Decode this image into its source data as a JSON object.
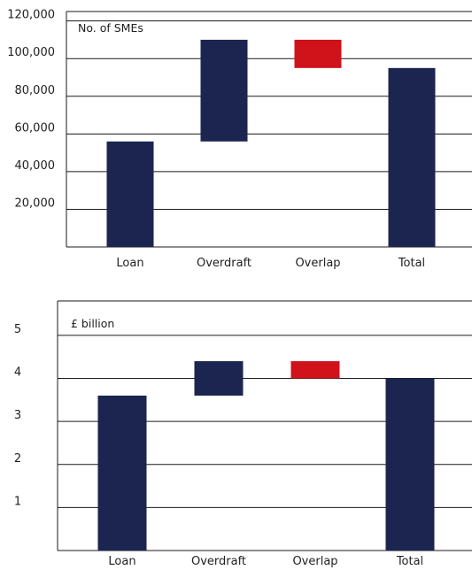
{
  "chart_data": [
    {
      "type": "waterfall",
      "unit_label": "No. of SMEs",
      "categories": [
        "Loan",
        "Overdraft",
        "Overlap",
        "Total"
      ],
      "bars": [
        {
          "category": "Loan",
          "base": 0,
          "top": 56000,
          "color": "#1b2550"
        },
        {
          "category": "Overdraft",
          "base": 56000,
          "top": 110000,
          "color": "#1b2550"
        },
        {
          "category": "Overlap",
          "base": 95000,
          "top": 110000,
          "color": "#d0121b"
        },
        {
          "category": "Total",
          "base": 0,
          "top": 95000,
          "color": "#1b2550"
        }
      ],
      "ylim": [
        0,
        125000
      ],
      "yticks": [
        20000,
        40000,
        60000,
        80000,
        100000,
        120000
      ],
      "ytick_labels": [
        "20,000",
        "40,000",
        "60,000",
        "80,000",
        "100,000",
        "120,000"
      ],
      "grid": true
    },
    {
      "type": "waterfall",
      "unit_label": "£ billion",
      "categories": [
        "Loan",
        "Overdraft",
        "Overlap",
        "Total"
      ],
      "bars": [
        {
          "category": "Loan",
          "base": 0,
          "top": 3.6,
          "color": "#1b2550"
        },
        {
          "category": "Overdraft",
          "base": 3.6,
          "top": 4.4,
          "color": "#1b2550"
        },
        {
          "category": "Overlap",
          "base": 4.0,
          "top": 4.4,
          "color": "#d0121b"
        },
        {
          "category": "Total",
          "base": 0,
          "top": 4.0,
          "color": "#1b2550"
        }
      ],
      "ylim": [
        0,
        5.8
      ],
      "yticks": [
        1,
        2,
        3,
        4,
        5
      ],
      "ytick_labels": [
        "1",
        "2",
        "3",
        "4",
        "5"
      ],
      "grid": true
    }
  ]
}
